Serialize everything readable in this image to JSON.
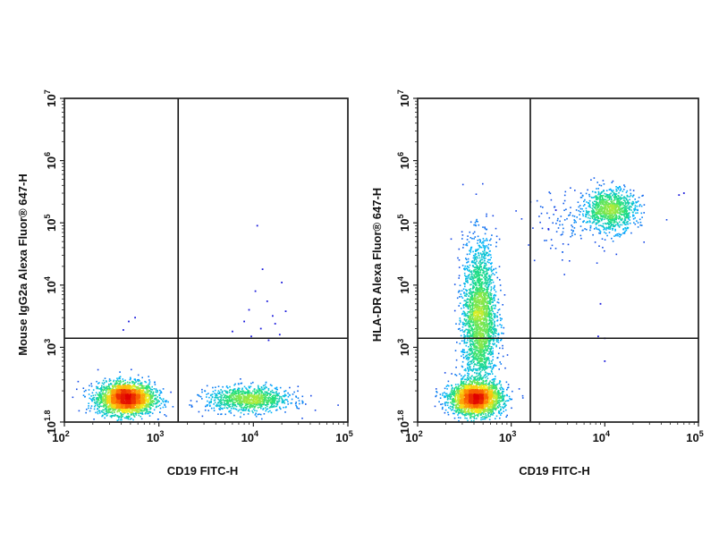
{
  "figure": {
    "panels": [
      {
        "xlabel": "CD19 FITC-H",
        "ylabel": "Mouse IgG2a Alexa Fluor® 647-H"
      },
      {
        "xlabel": "CD19 FITC-H",
        "ylabel": "HLA-DR Alexa Fluor® 647-H"
      }
    ]
  },
  "chart_data": [
    {
      "type": "scatter",
      "subtype": "flow-cytometry-density-dot-plot",
      "title": "",
      "xlabel": "CD19 FITC-H",
      "ylabel": "Mouse IgG2a Alexa Fluor® 647-H",
      "x_scale": "log",
      "y_scale": "log",
      "xlim": [
        100,
        100000
      ],
      "ylim": [
        63,
        10000000
      ],
      "x_ticks": [
        {
          "base": "10",
          "exp": "2"
        },
        {
          "base": "10",
          "exp": "3"
        },
        {
          "base": "10",
          "exp": "4"
        },
        {
          "base": "10",
          "exp": "5"
        }
      ],
      "y_ticks": [
        {
          "base": "10",
          "exp": "1.8"
        },
        {
          "base": "10",
          "exp": "3"
        },
        {
          "base": "10",
          "exp": "4"
        },
        {
          "base": "10",
          "exp": "5"
        },
        {
          "base": "10",
          "exp": "6"
        },
        {
          "base": "10",
          "exp": "7"
        }
      ],
      "quadrant_gate": {
        "x": 1600,
        "y": 1400
      },
      "density_colormap": [
        "#1a1adc",
        "#00b4ff",
        "#22e07a",
        "#f5ef1a",
        "#ff7a00",
        "#e00000"
      ],
      "populations": [
        {
          "center": [
            450,
            150
          ],
          "spread_log": [
            0.15,
            0.13
          ],
          "count": 2600
        },
        {
          "center": [
            9000,
            145
          ],
          "spread_log": [
            0.22,
            0.1
          ],
          "count": 1000
        }
      ],
      "sparse_events": [
        {
          "x": 480,
          "y": 2600
        },
        {
          "x": 560,
          "y": 3000
        },
        {
          "x": 420,
          "y": 1900
        },
        {
          "x": 11000,
          "y": 90000
        },
        {
          "x": 12500,
          "y": 18000
        },
        {
          "x": 10500,
          "y": 8000
        },
        {
          "x": 14000,
          "y": 5500
        },
        {
          "x": 9000,
          "y": 4000
        },
        {
          "x": 16000,
          "y": 3200
        },
        {
          "x": 8000,
          "y": 2600
        },
        {
          "x": 17000,
          "y": 2400
        },
        {
          "x": 12000,
          "y": 2000
        },
        {
          "x": 6000,
          "y": 1800
        },
        {
          "x": 19000,
          "y": 1600
        },
        {
          "x": 22000,
          "y": 3800
        },
        {
          "x": 14500,
          "y": 1300
        },
        {
          "x": 20000,
          "y": 11000
        },
        {
          "x": 9500,
          "y": 1500
        }
      ]
    },
    {
      "type": "scatter",
      "subtype": "flow-cytometry-density-dot-plot",
      "title": "",
      "xlabel": "CD19 FITC-H",
      "ylabel": "HLA-DR Alexa Fluor® 647-H",
      "x_scale": "log",
      "y_scale": "log",
      "xlim": [
        100,
        100000
      ],
      "ylim": [
        63,
        10000000
      ],
      "x_ticks": [
        {
          "base": "10",
          "exp": "2"
        },
        {
          "base": "10",
          "exp": "3"
        },
        {
          "base": "10",
          "exp": "4"
        },
        {
          "base": "10",
          "exp": "5"
        }
      ],
      "y_ticks": [
        {
          "base": "10",
          "exp": "1.8"
        },
        {
          "base": "10",
          "exp": "3"
        },
        {
          "base": "10",
          "exp": "4"
        },
        {
          "base": "10",
          "exp": "5"
        },
        {
          "base": "10",
          "exp": "6"
        },
        {
          "base": "10",
          "exp": "7"
        }
      ],
      "quadrant_gate": {
        "x": 1600,
        "y": 1400
      },
      "density_colormap": [
        "#1a1adc",
        "#00b4ff",
        "#22e07a",
        "#f5ef1a",
        "#ff7a00",
        "#e00000"
      ],
      "populations": [
        {
          "center": [
            420,
            150
          ],
          "spread_log": [
            0.14,
            0.13
          ],
          "count": 2400
        },
        {
          "center": [
            460,
            3000
          ],
          "spread_log": [
            0.09,
            0.6
          ],
          "count": 2400
        },
        {
          "center": [
            11500,
            160000
          ],
          "spread_log": [
            0.14,
            0.17
          ],
          "count": 1000
        },
        {
          "center": [
            4500,
            100000
          ],
          "spread_log": [
            0.25,
            0.25
          ],
          "count": 120
        }
      ],
      "sparse_events": [
        {
          "x": 70000,
          "y": 300000
        },
        {
          "x": 62000,
          "y": 280000
        },
        {
          "x": 9000,
          "y": 5000
        },
        {
          "x": 8500,
          "y": 1500
        },
        {
          "x": 10000,
          "y": 1400
        },
        {
          "x": 10000,
          "y": 600
        },
        {
          "x": 2500,
          "y": 80000
        },
        {
          "x": 3000,
          "y": 160000
        }
      ]
    }
  ]
}
